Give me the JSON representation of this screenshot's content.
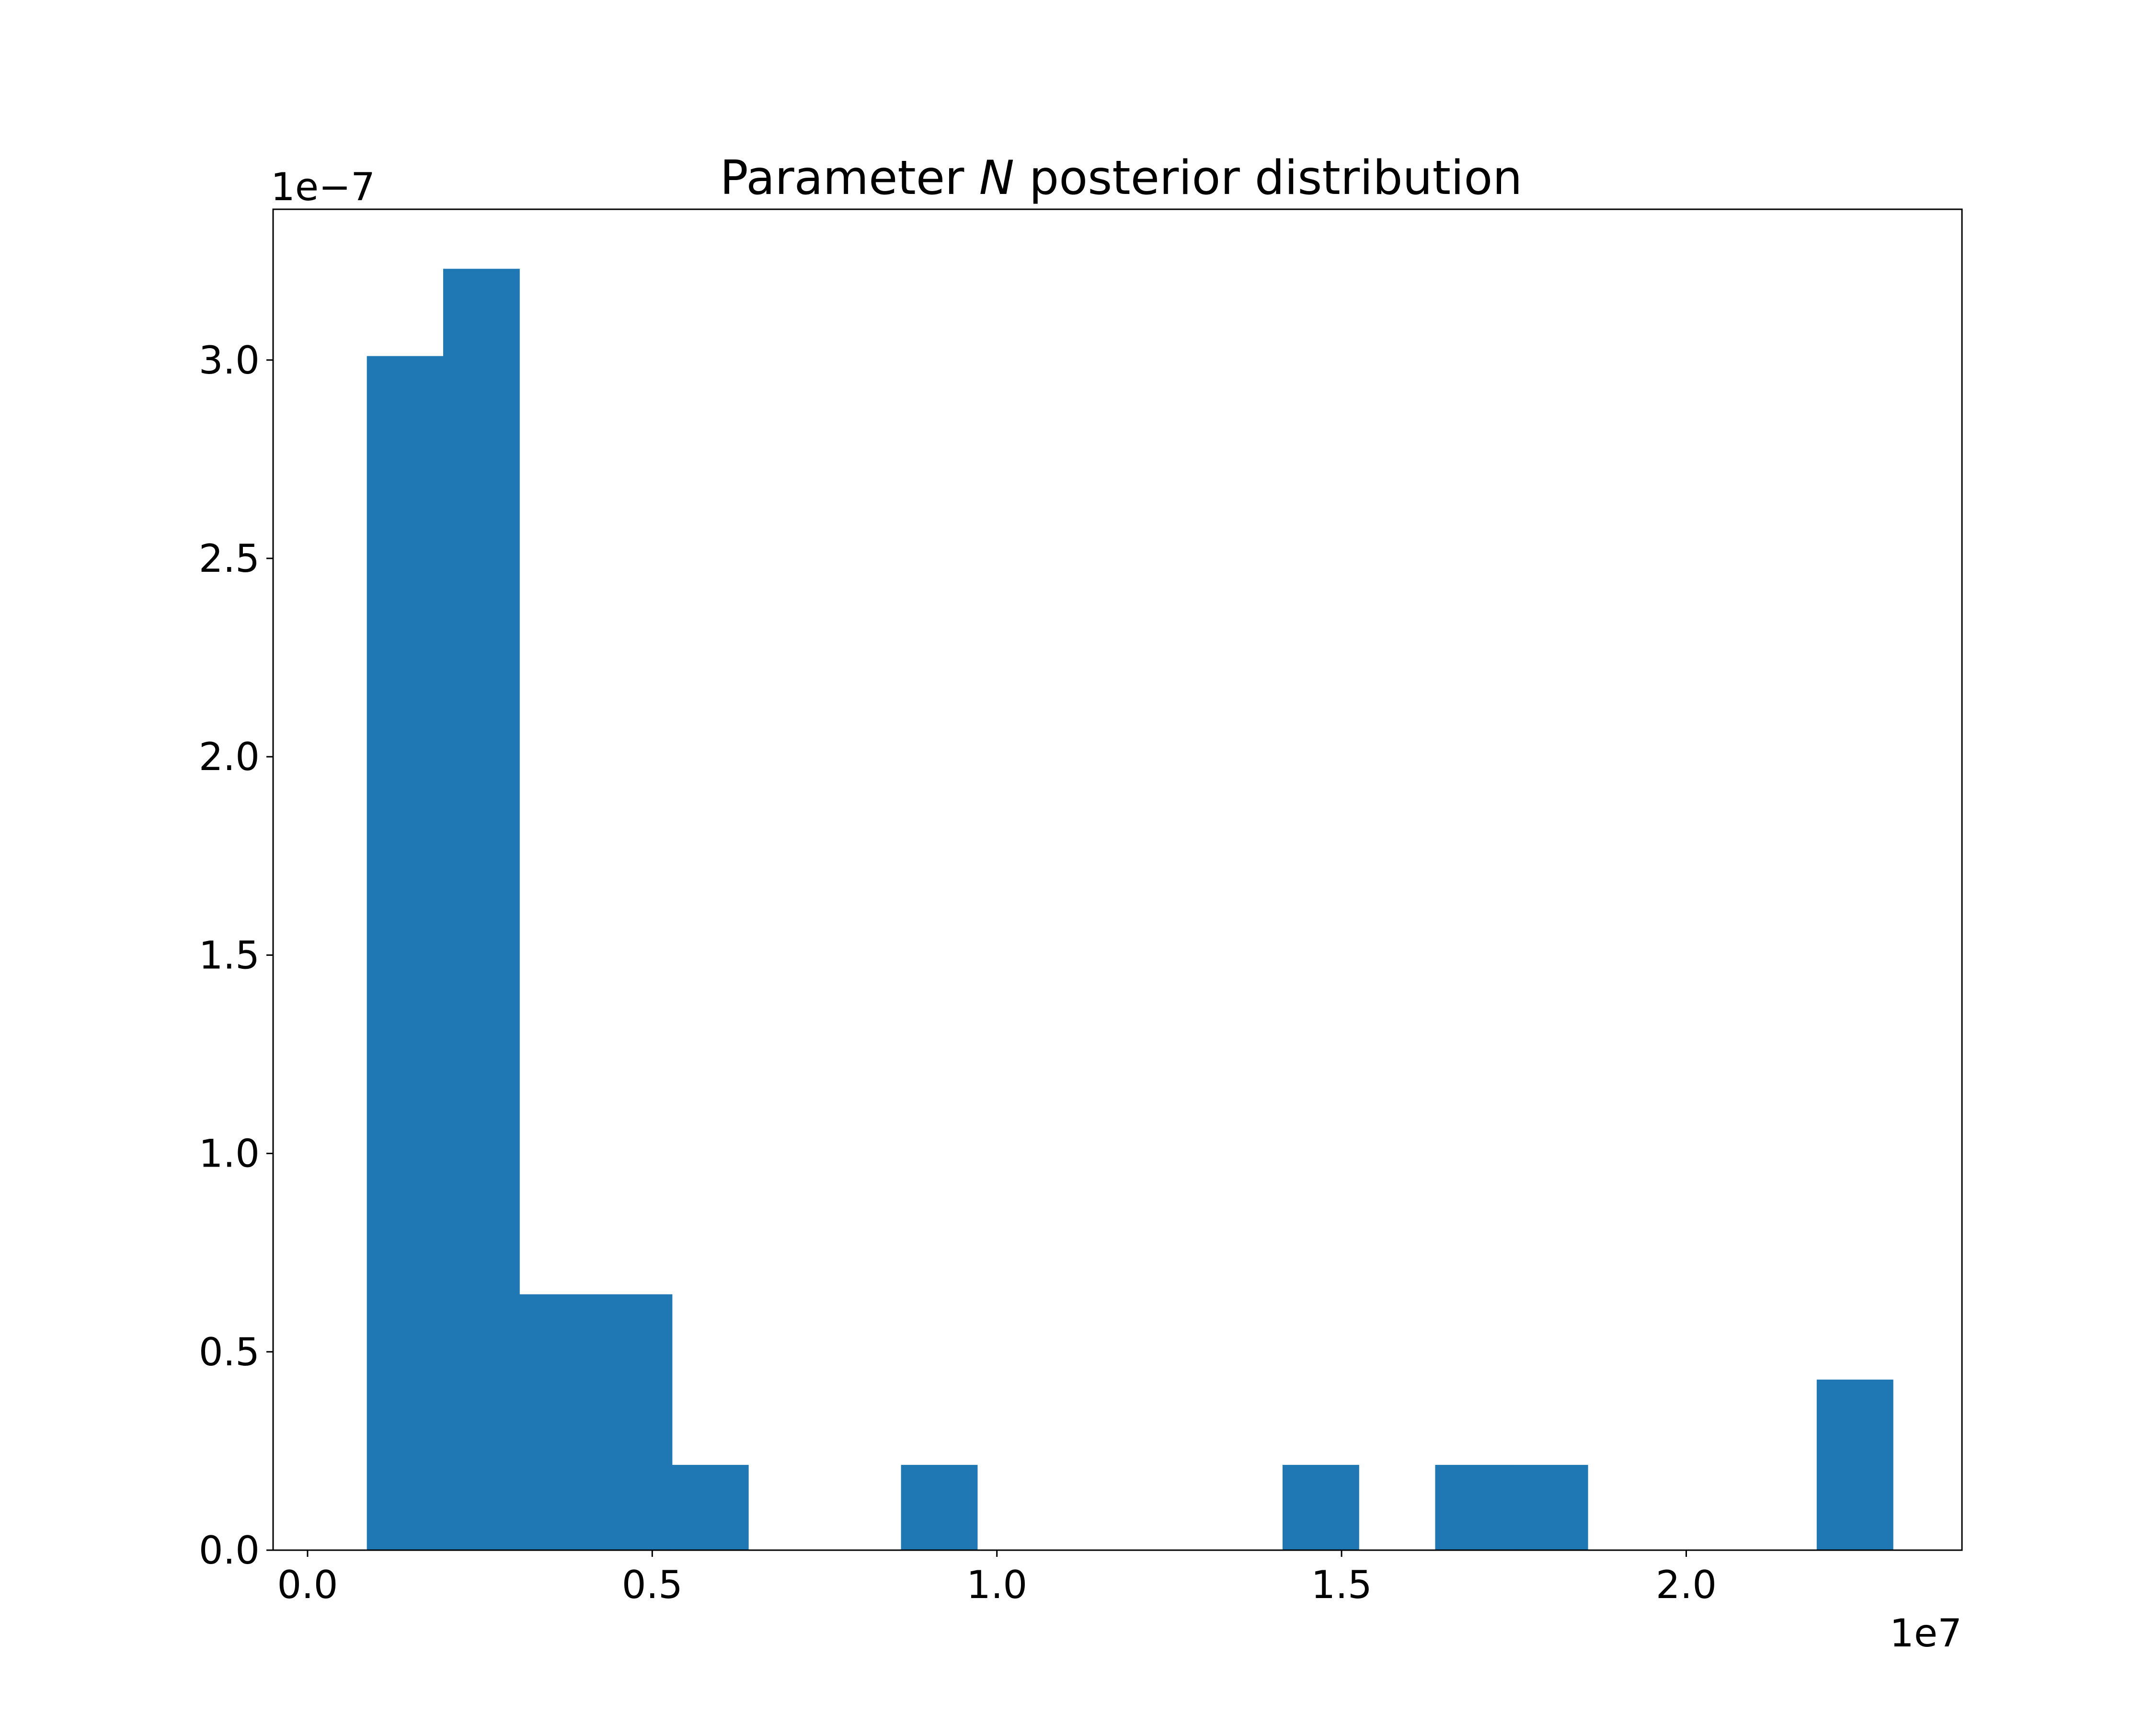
{
  "chart_data": {
    "type": "bar",
    "title": "Parameter N posterior distribution",
    "title_parts": {
      "before": "Parameter ",
      "italic": "N",
      "after": " posterior distribution"
    },
    "xlabel": "",
    "ylabel": "",
    "x_offset_label": "1e7",
    "y_offset_label": "1e−7",
    "xlim": [
      -0.05,
      2.4
    ],
    "ylim": [
      0.0,
      3.38
    ],
    "xticks": [
      {
        "value": 0.0,
        "label": "0.0"
      },
      {
        "value": 0.5,
        "label": "0.5"
      },
      {
        "value": 1.0,
        "label": "1.0"
      },
      {
        "value": 1.5,
        "label": "1.5"
      },
      {
        "value": 2.0,
        "label": "2.0"
      }
    ],
    "yticks": [
      {
        "value": 0.0,
        "label": "0.0"
      },
      {
        "value": 0.5,
        "label": "0.5"
      },
      {
        "value": 1.0,
        "label": "1.0"
      },
      {
        "value": 1.5,
        "label": "1.5"
      },
      {
        "value": 2.0,
        "label": "2.0"
      },
      {
        "value": 2.5,
        "label": "2.5"
      },
      {
        "value": 3.0,
        "label": "3.0"
      }
    ],
    "grid": false,
    "bar_color": "#1f77b4",
    "bin_start": 0.086,
    "bin_width": 0.1107,
    "values": [
      3.01,
      3.23,
      0.645,
      0.645,
      0.215,
      0.0,
      0.0,
      0.215,
      0.0,
      0.0,
      0.0,
      0.0,
      0.215,
      0.0,
      0.215,
      0.215,
      0.0,
      0.0,
      0.0,
      0.43
    ]
  }
}
